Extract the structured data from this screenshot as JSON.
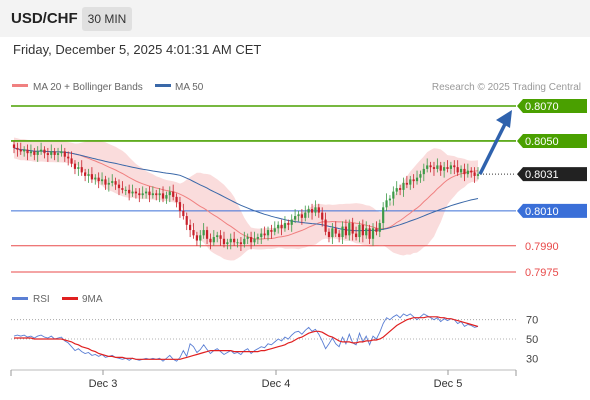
{
  "header": {
    "symbol": "USD/CHF",
    "timeframe": "30 MIN",
    "datetime": "Friday, December 5, 2025 4:01:31 AM CET"
  },
  "colors": {
    "resistance": "#4aa000",
    "current": "#222222",
    "pivot": "#3a6fd8",
    "support": "#e84a4a",
    "ma20": "#f08080",
    "ma50": "#3a68a8",
    "band_fill": "#f7c5c5",
    "arrow": "#2f62ad",
    "rsi": "#5b7fd4",
    "rsi_ma": "#e02020",
    "bull": "#3d9a48",
    "bear": "#c8202a"
  },
  "chart_data": [
    {
      "type": "candlestick",
      "legend": [
        {
          "label": "MA 20 + Bollinger Bands",
          "color": "#f08080"
        },
        {
          "label": "MA 50",
          "color": "#3a68a8"
        }
      ],
      "copyright": "Research © 2025 Trading Central",
      "ylim": [
        0.7965,
        0.808
      ],
      "levels": [
        {
          "value": 0.807,
          "label": "0.8070",
          "kind": "resistance"
        },
        {
          "value": 0.805,
          "label": "0.8050",
          "kind": "resistance"
        },
        {
          "value": 0.8031,
          "label": "0.8031",
          "kind": "current"
        },
        {
          "value": 0.801,
          "label": "0.8010",
          "kind": "pivot"
        },
        {
          "value": 0.799,
          "label": "0.7990",
          "kind": "support"
        },
        {
          "value": 0.7975,
          "label": "0.7975",
          "kind": "support"
        }
      ],
      "x_ticks": [
        "Dec 3",
        "Dec 4",
        "Dec 5"
      ],
      "close": [
        0.8046,
        0.8045,
        0.8044,
        0.8045,
        0.8043,
        0.8044,
        0.8042,
        0.8044,
        0.8045,
        0.8043,
        0.8042,
        0.8044,
        0.8042,
        0.8043,
        0.8044,
        0.8041,
        0.804,
        0.8037,
        0.8034,
        0.8035,
        0.8032,
        0.803,
        0.8031,
        0.8028,
        0.8029,
        0.8027,
        0.8028,
        0.8025,
        0.8026,
        0.8027,
        0.8025,
        0.8023,
        0.8022,
        0.8022,
        0.802,
        0.8021,
        0.802,
        0.8019,
        0.802,
        0.8021,
        0.8019,
        0.802,
        0.8019,
        0.802,
        0.8017,
        0.8019,
        0.8021,
        0.8018,
        0.8015,
        0.801,
        0.8007,
        0.8002,
        0.7999,
        0.7996,
        0.7993,
        0.7996,
        0.7999,
        0.7994,
        0.7992,
        0.7995,
        0.7996,
        0.7994,
        0.7991,
        0.7992,
        0.7994,
        0.7992,
        0.7992,
        0.7991,
        0.7994,
        0.7995,
        0.7992,
        0.7994,
        0.7995,
        0.7997,
        0.7996,
        0.7999,
        0.7998,
        0.8,
        0.8002,
        0.8,
        0.8003,
        0.8002,
        0.8005,
        0.8007,
        0.8008,
        0.8006,
        0.8009,
        0.8011,
        0.8009,
        0.8012,
        0.8009,
        0.8005,
        0.7998,
        0.7995,
        0.8,
        0.7997,
        0.7995,
        0.8001,
        0.7996,
        0.8003,
        0.7997,
        0.7995,
        0.8002,
        0.7996,
        0.8,
        0.7994,
        0.8,
        0.7998,
        0.8003,
        0.8012,
        0.8016,
        0.8017,
        0.8021,
        0.8023,
        0.8022,
        0.8026,
        0.8025,
        0.8028,
        0.8027,
        0.8029,
        0.8031,
        0.8034,
        0.8036,
        0.8035,
        0.8034,
        0.8036,
        0.8033,
        0.8035,
        0.8034,
        0.8036,
        0.8035,
        0.8032,
        0.8034,
        0.8031,
        0.8033,
        0.8032,
        0.803,
        0.8031
      ]
    },
    {
      "type": "line",
      "series": [
        {
          "name": "RSI",
          "color": "#5b7fd4"
        },
        {
          "name": "9MA",
          "color": "#e02020"
        }
      ],
      "ylim": [
        20,
        80
      ],
      "y_ticks": [
        70,
        50,
        30
      ],
      "rsi": [
        53,
        54,
        53,
        54,
        52,
        53,
        51,
        53,
        54,
        52,
        51,
        53,
        50,
        51,
        52,
        48,
        46,
        42,
        38,
        40,
        37,
        35,
        36,
        33,
        34,
        32,
        34,
        31,
        32,
        33,
        31,
        30,
        29,
        30,
        28,
        30,
        29,
        28,
        29,
        30,
        29,
        30,
        29,
        30,
        27,
        30,
        33,
        29,
        27,
        31,
        38,
        32,
        45,
        42,
        36,
        39,
        44,
        39,
        35,
        38,
        40,
        37,
        34,
        36,
        38,
        35,
        36,
        34,
        38,
        40,
        35,
        38,
        40,
        42,
        41,
        45,
        44,
        47,
        50,
        48,
        52,
        50,
        54,
        57,
        58,
        55,
        59,
        62,
        58,
        60,
        55,
        48,
        40,
        45,
        51,
        45,
        42,
        52,
        45,
        55,
        46,
        44,
        56,
        47,
        53,
        44,
        53,
        50,
        57,
        66,
        72,
        70,
        73,
        75,
        72,
        76,
        74,
        76,
        73,
        70,
        73,
        76,
        74,
        72,
        70,
        72,
        68,
        71,
        69,
        71,
        70,
        66,
        68,
        63,
        65,
        64,
        62,
        63
      ],
      "rsi_ma": [
        51,
        51,
        51,
        51,
        51,
        51,
        50,
        50,
        50,
        50,
        50,
        50,
        50,
        50,
        50,
        49,
        48,
        47,
        45,
        44,
        42,
        41,
        40,
        38,
        37,
        35,
        34,
        33,
        32,
        32,
        31,
        31,
        31,
        30,
        30,
        30,
        29,
        29,
        29,
        29,
        29,
        29,
        29,
        29,
        29,
        29,
        29,
        29,
        29,
        29,
        30,
        31,
        32,
        33,
        34,
        35,
        36,
        37,
        38,
        38,
        38,
        38,
        38,
        38,
        38,
        37,
        37,
        37,
        37,
        37,
        37,
        37,
        37,
        38,
        38,
        39,
        40,
        41,
        42,
        43,
        44,
        46,
        47,
        49,
        51,
        52,
        54,
        56,
        57,
        58,
        58,
        57,
        55,
        53,
        52,
        50,
        48,
        47,
        47,
        47,
        46,
        46,
        47,
        47,
        48,
        48,
        49,
        49,
        50,
        52,
        55,
        58,
        61,
        64,
        66,
        68,
        70,
        71,
        72,
        72,
        72,
        72,
        73,
        73,
        73,
        73,
        72,
        72,
        71,
        71,
        70,
        69,
        68,
        67,
        66,
        65,
        64,
        63
      ]
    }
  ]
}
